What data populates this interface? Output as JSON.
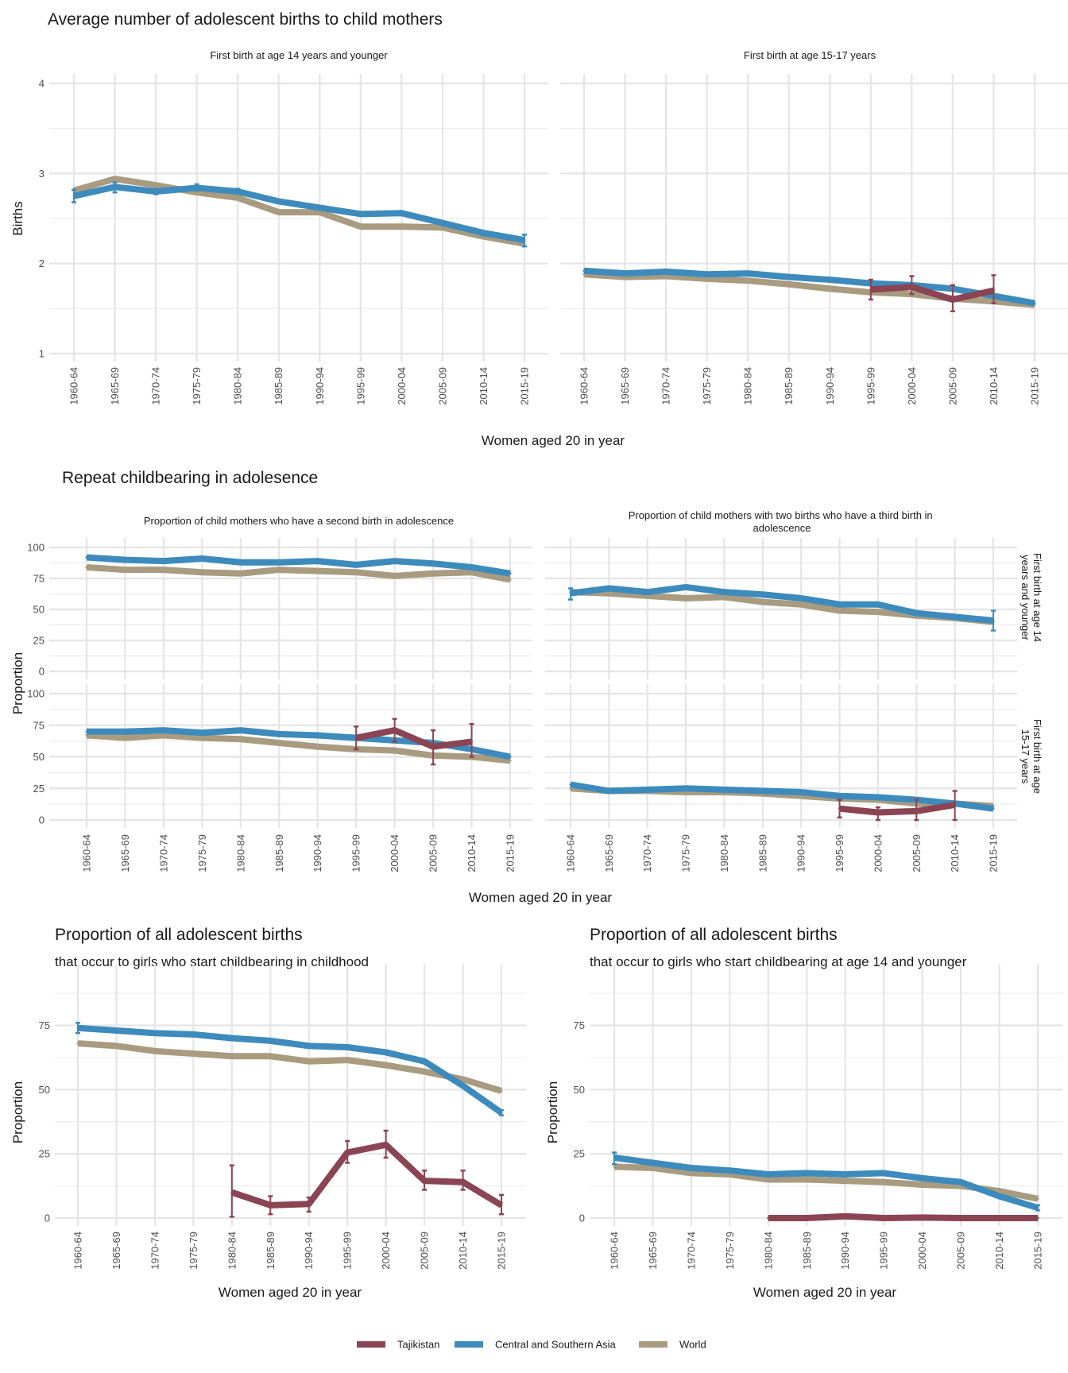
{
  "colors": {
    "Tajikistan": "#8b4454",
    "Central and Southern Asia": "#3d8bbd",
    "World": "#a89b80"
  },
  "legend": {
    "items": [
      "Tajikistan",
      "Central and Southern Asia",
      "World"
    ]
  },
  "chart_data": [
    {
      "id": "avg-births-14",
      "type": "line",
      "section_title": "Average number of adolescent births to child mothers",
      "title": "First birth at age 14 years and younger",
      "xlabel": "Women aged 20 in year",
      "ylabel": "Births",
      "ylim": [
        1,
        4
      ],
      "yticks": [
        1,
        2,
        3,
        4
      ],
      "grid": true,
      "categories": [
        "1960-64",
        "1965-69",
        "1970-74",
        "1975-79",
        "1980-84",
        "1985-89",
        "1990-94",
        "1995-99",
        "2000-04",
        "2005-09",
        "2010-14",
        "2015-19"
      ],
      "series": [
        {
          "name": "Central and Southern Asia",
          "values": [
            2.75,
            2.85,
            2.8,
            2.84,
            2.8,
            2.69,
            2.62,
            2.55,
            2.56,
            2.45,
            2.34,
            2.26
          ],
          "err_low": [
            2.68,
            2.79,
            2.77,
            2.81,
            2.78,
            null,
            null,
            null,
            null,
            null,
            2.31,
            2.19
          ],
          "err_high": [
            2.82,
            2.9,
            2.83,
            2.88,
            2.83,
            null,
            null,
            null,
            null,
            null,
            2.36,
            2.32
          ]
        },
        {
          "name": "World",
          "values": [
            2.81,
            2.94,
            2.87,
            2.79,
            2.73,
            2.57,
            2.57,
            2.41,
            2.41,
            2.4,
            2.3,
            2.22
          ]
        }
      ]
    },
    {
      "id": "avg-births-15-17",
      "type": "line",
      "title": "First birth at age 15-17 years",
      "xlabel": "Women aged 20 in year",
      "ylabel": "",
      "ylim": [
        1,
        4
      ],
      "yticks": [
        1,
        2,
        3,
        4
      ],
      "grid": true,
      "categories": [
        "1960-64",
        "1965-69",
        "1970-74",
        "1975-79",
        "1980-84",
        "1985-89",
        "1990-94",
        "1995-99",
        "2000-04",
        "2005-09",
        "2010-14",
        "2015-19"
      ],
      "series": [
        {
          "name": "Central and Southern Asia",
          "values": [
            1.92,
            1.89,
            1.91,
            1.88,
            1.89,
            1.85,
            1.82,
            1.78,
            1.76,
            1.72,
            1.64,
            1.56
          ]
        },
        {
          "name": "World",
          "values": [
            1.88,
            1.85,
            1.86,
            1.83,
            1.81,
            1.77,
            1.72,
            1.68,
            1.66,
            1.61,
            1.58,
            1.54
          ]
        },
        {
          "name": "Tajikistan",
          "values": [
            null,
            null,
            null,
            null,
            null,
            null,
            null,
            1.71,
            1.74,
            1.6,
            1.7,
            null
          ],
          "err_low": [
            null,
            null,
            null,
            null,
            null,
            null,
            null,
            1.6,
            1.66,
            1.47,
            1.56,
            null
          ],
          "err_high": [
            null,
            null,
            null,
            null,
            null,
            null,
            null,
            1.82,
            1.86,
            1.76,
            1.87,
            null
          ]
        }
      ]
    },
    {
      "id": "second-birth-14",
      "type": "line",
      "section_title": "Repeat childbearing in adolesence",
      "title": "Proportion of child mothers who have a second birth in adolescence",
      "row_label": "First birth at age 14 years and younger",
      "xlabel": "Women aged 20 in year",
      "ylabel": "Proportion",
      "ylim": [
        0,
        100
      ],
      "yticks": [
        0,
        25,
        50,
        75,
        100
      ],
      "grid": true,
      "categories": [
        "1960-64",
        "1965-69",
        "1970-74",
        "1975-79",
        "1980-84",
        "1985-89",
        "1990-94",
        "1995-99",
        "2000-04",
        "2005-09",
        "2010-14",
        "2015-19"
      ],
      "series": [
        {
          "name": "Central and Southern Asia",
          "values": [
            92,
            90,
            89,
            91,
            88,
            88,
            89,
            86,
            89,
            87,
            84,
            79
          ]
        },
        {
          "name": "World",
          "values": [
            84,
            82,
            82,
            80,
            79,
            82,
            81,
            80,
            77,
            79,
            80,
            74
          ]
        }
      ]
    },
    {
      "id": "third-birth-14",
      "type": "line",
      "title": "Proportion of child mothers with two births who have a third birth in adolescence",
      "row_label": "First birth at age 14 years and younger",
      "ylim": [
        0,
        100
      ],
      "yticks": [
        0,
        25,
        50,
        75,
        100
      ],
      "grid": true,
      "categories": [
        "1960-64",
        "1965-69",
        "1970-74",
        "1975-79",
        "1980-84",
        "1985-89",
        "1990-94",
        "1995-99",
        "2000-04",
        "2005-09",
        "2010-14",
        "2015-19"
      ],
      "series": [
        {
          "name": "Central and Southern Asia",
          "values": [
            63,
            67,
            64,
            68,
            64,
            62,
            59,
            54,
            54,
            47,
            44,
            41
          ],
          "err_low": [
            58,
            null,
            null,
            null,
            null,
            null,
            null,
            null,
            null,
            null,
            null,
            33
          ],
          "err_high": [
            67,
            null,
            null,
            null,
            null,
            null,
            null,
            null,
            null,
            null,
            null,
            49
          ]
        },
        {
          "name": "World",
          "values": [
            64,
            63,
            61,
            59,
            60,
            56,
            54,
            49,
            48,
            45,
            43,
            40
          ]
        }
      ]
    },
    {
      "id": "second-birth-15-17",
      "type": "line",
      "title": "Proportion of child mothers who have a second birth in adolescence",
      "row_label": "First birth at age 15-17 years",
      "xlabel": "Women aged 20 in year",
      "ylabel": "Proportion",
      "ylim": [
        0,
        100
      ],
      "yticks": [
        0,
        25,
        50,
        75,
        100
      ],
      "grid": true,
      "categories": [
        "1960-64",
        "1965-69",
        "1970-74",
        "1975-79",
        "1980-84",
        "1985-89",
        "1990-94",
        "1995-99",
        "2000-04",
        "2005-09",
        "2010-14",
        "2015-19"
      ],
      "series": [
        {
          "name": "Central and Southern Asia",
          "values": [
            70,
            70,
            71,
            69,
            71,
            68,
            67,
            65,
            63,
            61,
            56,
            50
          ]
        },
        {
          "name": "World",
          "values": [
            67,
            65,
            67,
            65,
            64,
            61,
            58,
            56,
            55,
            51,
            50,
            47
          ]
        },
        {
          "name": "Tajikistan",
          "values": [
            null,
            null,
            null,
            null,
            null,
            null,
            null,
            65,
            71,
            58,
            62,
            null
          ],
          "err_low": [
            null,
            null,
            null,
            null,
            null,
            null,
            null,
            56,
            62,
            44,
            50,
            null
          ],
          "err_high": [
            null,
            null,
            null,
            null,
            null,
            null,
            null,
            74,
            80,
            71,
            76,
            null
          ]
        }
      ]
    },
    {
      "id": "third-birth-15-17",
      "type": "line",
      "title": "Proportion of child mothers with two births who have a third birth in adolescence",
      "row_label": "First birth at age 15-17 years",
      "ylim": [
        0,
        100
      ],
      "yticks": [
        0,
        25,
        50,
        75,
        100
      ],
      "grid": true,
      "categories": [
        "1960-64",
        "1965-69",
        "1970-74",
        "1975-79",
        "1980-84",
        "1985-89",
        "1990-94",
        "1995-99",
        "2000-04",
        "2005-09",
        "2010-14",
        "2015-19"
      ],
      "series": [
        {
          "name": "Central and Southern Asia",
          "values": [
            28,
            23,
            24,
            25,
            24,
            23,
            22,
            19,
            18,
            16,
            13,
            9
          ]
        },
        {
          "name": "World",
          "values": [
            25,
            23,
            23,
            22,
            22,
            21,
            19,
            17,
            16,
            13,
            13,
            11
          ]
        },
        {
          "name": "Tajikistan",
          "values": [
            null,
            null,
            null,
            null,
            null,
            null,
            null,
            9,
            6,
            7,
            12,
            null
          ],
          "err_low": [
            null,
            null,
            null,
            null,
            null,
            null,
            null,
            2,
            0,
            0,
            0,
            null
          ],
          "err_high": [
            null,
            null,
            null,
            null,
            null,
            null,
            null,
            16,
            10,
            16,
            23,
            null
          ]
        }
      ]
    },
    {
      "id": "share-childhood",
      "type": "line",
      "title": "Proportion of all adolescent births",
      "subtitle": "that occur to girls who start childbearing in childhood",
      "xlabel": "Women aged 20 in year",
      "ylabel": "Proportion",
      "ylim": [
        0,
        90
      ],
      "yticks": [
        0,
        25,
        50,
        75
      ],
      "grid": true,
      "categories": [
        "1960-64",
        "1965-69",
        "1970-74",
        "1975-79",
        "1980-84",
        "1985-89",
        "1990-94",
        "1995-99",
        "2000-04",
        "2005-09",
        "2010-14",
        "2015-19"
      ],
      "series": [
        {
          "name": "Central and Southern Asia",
          "values": [
            74,
            73,
            72,
            71.5,
            70,
            69,
            67,
            66.5,
            64.5,
            61,
            51.5,
            41
          ],
          "err_low": [
            72,
            null,
            null,
            null,
            null,
            null,
            null,
            null,
            null,
            null,
            null,
            40
          ],
          "err_high": [
            76,
            null,
            null,
            null,
            null,
            null,
            null,
            null,
            null,
            null,
            null,
            42
          ]
        },
        {
          "name": "World",
          "values": [
            68,
            67,
            65,
            64,
            63,
            63,
            61,
            61.5,
            59.5,
            57,
            54,
            49.5
          ]
        },
        {
          "name": "Tajikistan",
          "values": [
            null,
            null,
            null,
            null,
            10,
            5,
            5.5,
            25.5,
            28.5,
            14.5,
            14,
            5
          ],
          "err_low": [
            null,
            null,
            null,
            null,
            0.5,
            1.5,
            2.5,
            21.5,
            23.5,
            11,
            11,
            1.5
          ],
          "err_high": [
            null,
            null,
            null,
            null,
            20.5,
            8.5,
            8,
            30,
            34,
            18.5,
            18.5,
            9
          ]
        }
      ]
    },
    {
      "id": "share-14-younger",
      "type": "line",
      "title": "Proportion of all adolescent births",
      "subtitle": "that occur to girls who start childbearing at age 14 and younger",
      "xlabel": "Women aged 20 in year",
      "ylabel": "Proportion",
      "ylim": [
        0,
        90
      ],
      "yticks": [
        0,
        25,
        50,
        75
      ],
      "grid": true,
      "categories": [
        "1960-64",
        "1965-69",
        "1970-74",
        "1975-79",
        "1980-84",
        "1985-89",
        "1990-94",
        "1995-99",
        "2000-04",
        "2005-09",
        "2010-14",
        "2015-19"
      ],
      "series": [
        {
          "name": "Central and Southern Asia",
          "values": [
            23.5,
            21.5,
            19.5,
            18.5,
            17,
            17.5,
            17,
            17.5,
            15.5,
            14,
            8.5,
            4
          ],
          "err_low": [
            21,
            null,
            null,
            null,
            null,
            null,
            null,
            null,
            null,
            null,
            null,
            3
          ],
          "err_high": [
            25.5,
            null,
            null,
            null,
            null,
            null,
            null,
            null,
            null,
            null,
            null,
            5
          ]
        },
        {
          "name": "World",
          "values": [
            20,
            19.5,
            17.5,
            17,
            15,
            15,
            14.5,
            14,
            13,
            12.5,
            10.5,
            7.5
          ]
        },
        {
          "name": "Tajikistan",
          "values": [
            null,
            null,
            null,
            null,
            0,
            0,
            0.7,
            0,
            0.2,
            0,
            0,
            0
          ]
        }
      ]
    }
  ]
}
